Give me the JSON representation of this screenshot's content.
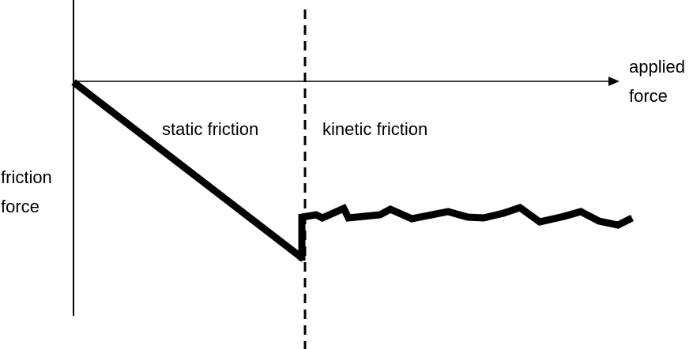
{
  "labels": {
    "x_axis_line1": "applied",
    "x_axis_line2": "force",
    "y_axis_line1": "friction",
    "y_axis_line2": "force",
    "static_region": "static friction",
    "kinetic_region": "kinetic friction"
  },
  "colors": {
    "ink": "#000000",
    "background": "#ffffff"
  }
}
